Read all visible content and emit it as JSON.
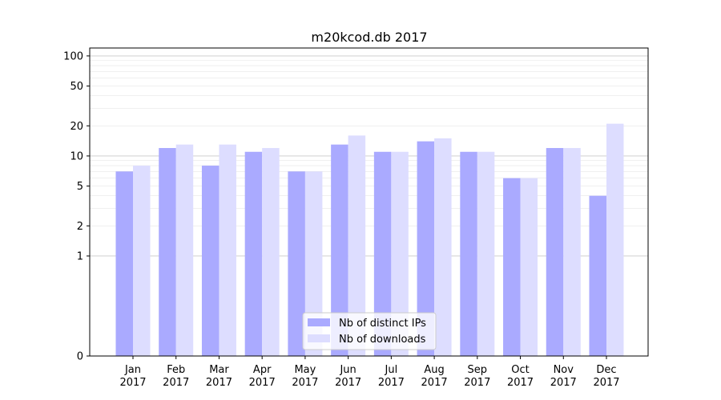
{
  "chart_data": {
    "type": "bar",
    "title": "m20kcod.db 2017",
    "xlabel": "",
    "ylabel": "",
    "categories": [
      [
        "Jan",
        "2017"
      ],
      [
        "Feb",
        "2017"
      ],
      [
        "Mar",
        "2017"
      ],
      [
        "Apr",
        "2017"
      ],
      [
        "May",
        "2017"
      ],
      [
        "Jun",
        "2017"
      ],
      [
        "Jul",
        "2017"
      ],
      [
        "Aug",
        "2017"
      ],
      [
        "Sep",
        "2017"
      ],
      [
        "Oct",
        "2017"
      ],
      [
        "Nov",
        "2017"
      ],
      [
        "Dec",
        "2017"
      ]
    ],
    "series": [
      {
        "name": "Nb of distinct IPs",
        "color": "#aaaaff",
        "values": [
          7,
          12,
          8,
          11,
          7,
          13,
          11,
          14,
          11,
          6,
          12,
          4
        ]
      },
      {
        "name": "Nb of downloads",
        "color": "#ddddff",
        "values": [
          8,
          13,
          13,
          12,
          7,
          16,
          11,
          15,
          11,
          6,
          12,
          21
        ]
      }
    ],
    "yscale": "symlog",
    "ylim": [
      0,
      120
    ],
    "yticks": [
      0,
      1,
      2,
      5,
      10,
      20,
      50,
      100
    ],
    "ytick_labels": [
      "0",
      "1",
      "2",
      "5",
      "10",
      "20",
      "50",
      "100"
    ],
    "grid": true,
    "legend_position": "bottom-center"
  }
}
